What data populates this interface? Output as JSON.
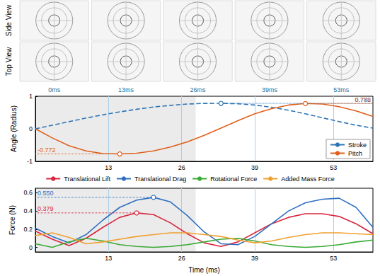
{
  "panels": {
    "rows": [
      "Side View",
      "Top View"
    ],
    "times": [
      "0ms",
      "13ms",
      "26ms",
      "39ms",
      "53ms"
    ]
  },
  "chart_data": [
    {
      "type": "line",
      "ylabel": "Angle (Radius)",
      "x": [
        0,
        3,
        6,
        9,
        12,
        15,
        18,
        21,
        24,
        27,
        30,
        33,
        36,
        39,
        42,
        45,
        48,
        51,
        54,
        57,
        60
      ],
      "series": [
        {
          "name": "Stroke",
          "color": "#2e75b6",
          "line_style": "dashed",
          "values": [
            0,
            0.11,
            0.22,
            0.33,
            0.43,
            0.52,
            0.6,
            0.67,
            0.72,
            0.76,
            0.78,
            0.782,
            0.77,
            0.73,
            0.66,
            0.57,
            0.46,
            0.34,
            0.22,
            0.11,
            0.02
          ]
        },
        {
          "name": "Pitch",
          "color": "#e0601c",
          "line_style": "solid",
          "values": [
            0,
            -0.28,
            -0.52,
            -0.68,
            -0.76,
            -0.772,
            -0.75,
            -0.68,
            -0.56,
            -0.4,
            -0.2,
            0.02,
            0.25,
            0.46,
            0.62,
            0.73,
            0.776,
            0.76,
            0.68,
            0.55,
            0.38
          ]
        }
      ],
      "xlim": [
        0,
        60
      ],
      "xticks": [
        13,
        26,
        39,
        53
      ],
      "ylim": [
        -1,
        1
      ],
      "yticks": [
        -1,
        0,
        1
      ],
      "grid": "x",
      "legend": "lower right",
      "shaded_x": [
        0,
        28.5
      ],
      "annotations": [
        {
          "text": "0.782",
          "series": "Stroke",
          "x": 33,
          "y": 0.782
        },
        {
          "text": "-0.772",
          "series": "Pitch",
          "x": 15,
          "y": -0.772
        },
        {
          "text": "0.776",
          "series": "Pitch",
          "x": 48,
          "y": 0.776
        }
      ]
    },
    {
      "type": "line",
      "ylabel": "Force (N)",
      "xlabel": "Time (ms)",
      "x": [
        0,
        3,
        6,
        9,
        12,
        15,
        18,
        21,
        24,
        27,
        30,
        33,
        36,
        39,
        42,
        45,
        48,
        51,
        54,
        57,
        60
      ],
      "series": [
        {
          "name": "Translational Lift",
          "color": "#d7263d",
          "line_style": "solid",
          "values": [
            0.18,
            0.09,
            0.02,
            0.1,
            0.22,
            0.33,
            0.379,
            0.36,
            0.27,
            0.15,
            0.05,
            0.01,
            0.06,
            0.16,
            0.26,
            0.33,
            0.37,
            0.37,
            0.34,
            0.26,
            0.15
          ]
        },
        {
          "name": "Translational Drag",
          "color": "#2f6fc0",
          "line_style": "solid",
          "values": [
            0.21,
            0.12,
            0.05,
            0.14,
            0.3,
            0.44,
            0.52,
            0.55,
            0.5,
            0.35,
            0.17,
            0.04,
            0.03,
            0.12,
            0.26,
            0.4,
            0.49,
            0.53,
            0.54,
            0.44,
            0.22
          ]
        },
        {
          "name": "Rotational Force",
          "color": "#3aaa35",
          "line_style": "solid",
          "values": [
            0.04,
            0,
            0.06,
            0.1,
            0.07,
            0.03,
            0.01,
            0,
            0.01,
            0.03,
            0.06,
            0.09,
            0.1,
            0.07,
            0.03,
            0.01,
            0,
            0.01,
            0.03,
            0.06,
            0.08
          ]
        },
        {
          "name": "Added Mass Force",
          "color": "#f0a030",
          "line_style": "solid",
          "values": [
            0.13,
            0.16,
            0.11,
            0.04,
            0.06,
            0.09,
            0.12,
            0.14,
            0.16,
            0.16,
            0.14,
            0.12,
            0.08,
            0.05,
            0.07,
            0.11,
            0.14,
            0.16,
            0.16,
            0.15,
            0.14
          ]
        }
      ],
      "xlim": [
        0,
        60
      ],
      "xticks": [
        13,
        26,
        39,
        53
      ],
      "ylim": [
        -0.05,
        0.65
      ],
      "yticks": [
        0,
        0.2,
        0.4,
        0.6
      ],
      "grid": "x",
      "legend": "top",
      "shaded_x": [
        0,
        28.5
      ],
      "annotations": [
        {
          "text": "0.550",
          "series": "Translational Drag",
          "x": 21,
          "y": 0.55
        },
        {
          "text": "0.379",
          "series": "Translational Lift",
          "x": 18,
          "y": 0.379
        }
      ]
    }
  ]
}
